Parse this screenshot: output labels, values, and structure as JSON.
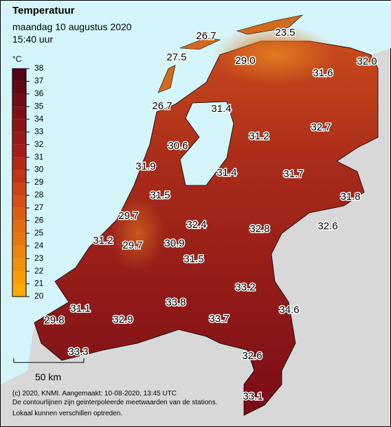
{
  "header": {
    "title": "Temperatuur",
    "date": "maandag 10 augustus 2020",
    "time": "15:40 uur"
  },
  "legend": {
    "unit": "°C",
    "ticks": [
      20,
      21,
      22,
      23,
      24,
      25,
      26,
      27,
      28,
      29,
      30,
      31,
      32,
      33,
      34,
      35,
      36,
      37,
      38
    ]
  },
  "stations": [
    "26.7",
    "23.5",
    "27.5",
    "29.0",
    "31.6",
    "32.0",
    "26.7",
    "31.4",
    "31.2",
    "32.7",
    "30.6",
    "31.9",
    "31.4",
    "31.7",
    "31.8",
    "31.5",
    "29.7",
    "32.4",
    "32.8",
    "32.6",
    "31.2",
    "29.7",
    "30.9",
    "31.5",
    "33.2",
    "33.8",
    "34.6",
    "31.1",
    "33.7",
    "29.8",
    "32.9",
    "33.3",
    "32.6",
    "33.1"
  ],
  "scale": "50 km",
  "footer": [
    "(c) 2020, KNMI. Aangemaakt: 10-08-2020, 13:45 UTC",
    "De contourlijnen zijn geinterpoleerde meetwaarden van de stations.",
    "Lokaal kunnen verschillen optreden."
  ]
}
